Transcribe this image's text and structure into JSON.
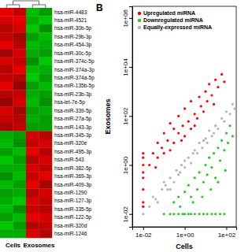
{
  "chart_data": [
    {
      "type": "heatmap",
      "x": [
        "Cells",
        null,
        "Exosomes",
        null
      ],
      "y": [
        "hsa-miR-4483",
        "hsa-miR-4521",
        "hsa-miR-30b-5p",
        "hsa-miR-29b-3p",
        "hsa-miR-454-3p",
        "hsa-miR-30c-5p",
        "hsa-miR-374c-5p",
        "hsa-miR-374a-3p",
        "hsa-miR-374a-5p",
        "hsa-miR-135b-5p",
        "hsa-miR-23b-3p",
        "hsa-let-7e-5p",
        "hsa-miR-339-5p",
        "hsa-miR-27a-5p",
        "hsa-miR-143-3p",
        "hsa-miR-345-3p",
        "hsa-miR-320e",
        "hsa-miR-495-3p",
        "hsa-miR-543",
        "hsa-miR-382-5p",
        "hsa-miR-369-3p",
        "hsa-miR-409-3p",
        "hsa-miR-1290",
        "hsa-miR-127-3p",
        "hsa-miR-335-5p",
        "hsa-miR-122-5p",
        "hsa-miR-320d",
        "hsa-miR-1246"
      ],
      "cells": [
        [
          1.3,
          1.1,
          -1.2,
          -1.0
        ],
        [
          1.2,
          1.3,
          -1.1,
          -1.3
        ],
        [
          1.0,
          1.2,
          -1.3,
          -0.9
        ],
        [
          1.1,
          0.9,
          -1.0,
          -1.2
        ],
        [
          1.3,
          1.0,
          -1.2,
          -1.1
        ],
        [
          0.9,
          1.2,
          -1.1,
          -1.0
        ],
        [
          1.2,
          1.1,
          -0.9,
          -1.3
        ],
        [
          1.0,
          1.3,
          -1.2,
          -1.1
        ],
        [
          1.1,
          1.0,
          -1.3,
          -1.0
        ],
        [
          1.3,
          0.8,
          -1.0,
          -1.2
        ],
        [
          1.0,
          1.1,
          -1.1,
          -1.0
        ],
        [
          0.8,
          1.2,
          -1.2,
          -0.9
        ],
        [
          1.2,
          0.9,
          -1.0,
          -1.1
        ],
        [
          1.1,
          1.0,
          -1.1,
          -1.0
        ],
        [
          0.9,
          1.1,
          -1.0,
          -1.0
        ],
        [
          -1.1,
          -1.0,
          1.2,
          1.0
        ],
        [
          -1.2,
          -0.9,
          1.1,
          1.2
        ],
        [
          -1.0,
          -1.2,
          1.3,
          1.0
        ],
        [
          -1.3,
          -1.0,
          1.0,
          1.2
        ],
        [
          -1.1,
          -1.1,
          1.2,
          1.1
        ],
        [
          -0.9,
          -1.2,
          1.1,
          1.3
        ],
        [
          -1.2,
          -1.0,
          1.3,
          0.9
        ],
        [
          -1.0,
          -1.1,
          1.0,
          1.2
        ],
        [
          -1.1,
          -1.3,
          1.2,
          1.1
        ],
        [
          -1.2,
          -0.9,
          1.1,
          1.0
        ],
        [
          -1.0,
          -1.2,
          1.3,
          1.2
        ],
        [
          -1.3,
          -1.0,
          1.0,
          1.1
        ],
        [
          -1.1,
          -1.1,
          1.2,
          1.0
        ]
      ]
    },
    {
      "type": "scatter",
      "title": "B",
      "x_label": "Cells",
      "y_label": "Exosomes",
      "log": true,
      "legend": "top-left",
      "xlim": [
        0.003,
        300
      ],
      "ylim": [
        0.003,
        3000000
      ],
      "xticks": [
        {
          "value": 0.01,
          "label": "1e-02"
        },
        {
          "value": 1,
          "label": "1e+00"
        },
        {
          "value": 100,
          "label": "1e+02"
        }
      ],
      "yticks": [
        {
          "value": 0.01,
          "label": "1e-02"
        },
        {
          "value": 1,
          "label": "1e+00"
        },
        {
          "value": 100,
          "label": "1e+02"
        },
        {
          "value": 10000,
          "label": "1e+04"
        },
        {
          "value": 1000000,
          "label": "1e+06"
        }
      ],
      "series": [
        {
          "name": "Upregulated miRNA",
          "color": "#ff0000",
          "marker": "circle",
          "x": [
            0.01,
            0.01,
            0.01,
            0.01,
            0.01,
            0.01,
            0.01,
            0.01,
            0.02,
            0.03,
            0.05,
            0.05,
            0.08,
            0.1,
            0.1,
            0.15,
            0.2,
            0.3,
            0.3,
            0.5,
            0.5,
            0.8,
            1,
            1,
            1.5,
            2,
            2,
            3,
            4,
            5,
            6,
            8,
            10,
            12,
            15,
            20,
            30,
            40,
            60,
            80,
            0.04,
            0.2,
            0.7,
            3,
            25
          ],
          "values": [
            0.03,
            0.1,
            0.3,
            1,
            3,
            0.02,
            0.5,
            2,
            1,
            3,
            2,
            8,
            5,
            3,
            20,
            10,
            50,
            8,
            30,
            20,
            100,
            40,
            15,
            200,
            60,
            30,
            400,
            120,
            80,
            600,
            250,
            150,
            1000,
            400,
            2000,
            700,
            3000,
            1500,
            5000,
            2500,
            0.8,
            4,
            10,
            40,
            300
          ]
        },
        {
          "name": "Downregulated miRNA",
          "color": "#22cc22",
          "marker": "circle",
          "x": [
            0.1,
            0.2,
            0.3,
            0.5,
            0.8,
            1,
            1.5,
            2,
            3,
            5,
            8,
            12,
            20,
            30,
            50,
            80,
            0.3,
            0.5,
            1,
            1.5,
            2,
            3,
            4,
            5,
            8,
            10,
            12,
            15,
            20,
            25,
            30,
            40,
            50,
            60,
            80,
            100,
            120,
            150,
            200,
            0.6,
            2.5,
            7,
            18,
            40,
            90
          ],
          "values": [
            0.01,
            0.01,
            0.01,
            0.01,
            0.01,
            0.01,
            0.01,
            0.01,
            0.01,
            0.01,
            0.01,
            0.01,
            0.01,
            0.01,
            0.01,
            0.01,
            0.03,
            0.05,
            0.08,
            0.15,
            0.05,
            0.3,
            0.1,
            0.5,
            0.2,
            1,
            0.4,
            2,
            0.8,
            3,
            0.3,
            5,
            1.5,
            10,
            4,
            20,
            8,
            40,
            15,
            0.02,
            0.03,
            0.05,
            0.1,
            0.2,
            0.6
          ]
        },
        {
          "name": "Equally-expressed miRNA",
          "color": "#b4b4b4",
          "marker": "circle",
          "x": [
            0.01,
            0.02,
            0.03,
            0.05,
            0.08,
            0.1,
            0.15,
            0.2,
            0.3,
            0.4,
            0.5,
            0.7,
            1,
            1,
            1.5,
            2,
            3,
            4,
            5,
            7,
            10,
            12,
            15,
            20,
            30,
            40,
            60,
            80,
            100,
            150,
            200,
            250,
            0.01,
            0.2,
            0.6,
            2.5,
            8,
            25,
            0.04,
            0.12
          ],
          "values": [
            0.01,
            0.02,
            0.05,
            0.03,
            0.1,
            0.2,
            0.1,
            0.3,
            0.2,
            0.6,
            0.4,
            1,
            0.8,
            1.5,
            2,
            1.2,
            4,
            3,
            8,
            5,
            12,
            8,
            25,
            15,
            40,
            30,
            80,
            60,
            150,
            120,
            300,
            200,
            0.02,
            0.1,
            0.5,
            3,
            10,
            20,
            0.04,
            0.15
          ]
        }
      ]
    }
  ]
}
